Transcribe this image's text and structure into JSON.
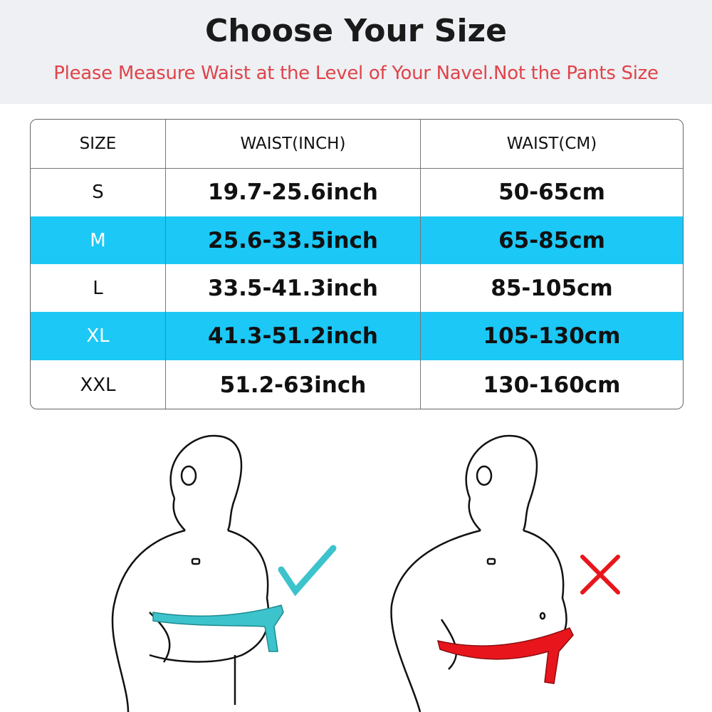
{
  "header": {
    "title": "Choose Your Size",
    "subtitle": "Please Measure Waist at the Level of Your Navel.Not the Pants Size"
  },
  "table": {
    "columns": [
      "SIZE",
      "WAIST(INCH)",
      "WAIST(CM)"
    ],
    "rows": [
      {
        "size": "S",
        "inch": "19.7-25.6inch",
        "cm": "50-65cm"
      },
      {
        "size": "M",
        "inch": "25.6-33.5inch",
        "cm": "65-85cm"
      },
      {
        "size": "L",
        "inch": "33.5-41.3inch",
        "cm": "85-105cm"
      },
      {
        "size": "XL",
        "inch": "41.3-51.2inch",
        "cm": "105-130cm"
      },
      {
        "size": "XXL",
        "inch": "51.2-63inch",
        "cm": "130-160cm"
      }
    ],
    "highlight_color": "#1cc8f6"
  },
  "illustrations": {
    "correct": {
      "icon": "check-icon",
      "tape_color": "#3cc3cc"
    },
    "incorrect": {
      "icon": "cross-icon",
      "tape_color": "#e8161c"
    }
  }
}
